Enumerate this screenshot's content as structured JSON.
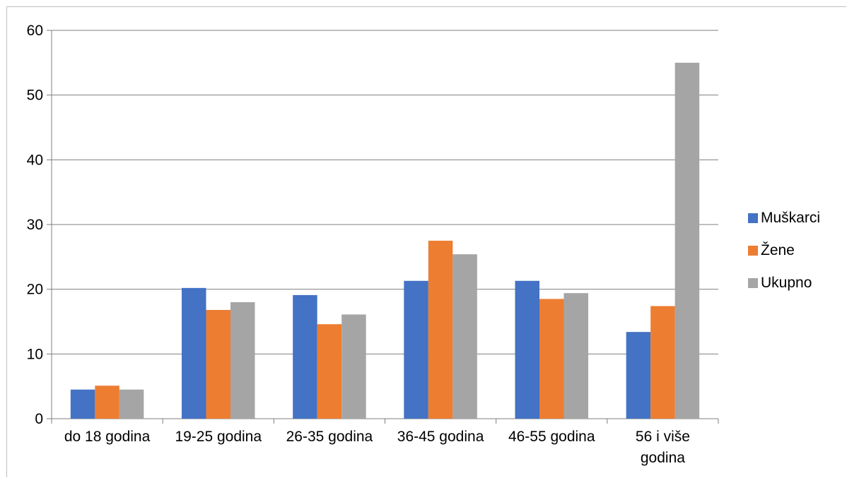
{
  "chart_data": {
    "type": "bar",
    "categories": [
      "do 18 godina",
      "19-25 godina",
      "26-35 godina",
      "36-45 godina",
      "46-55 godina",
      "56 i više godina"
    ],
    "series": [
      {
        "name": "Muškarci",
        "color": "#4472c4",
        "values": [
          4.5,
          20.2,
          19.1,
          21.3,
          21.3,
          13.4
        ]
      },
      {
        "name": "Žene",
        "color": "#ed7d31",
        "values": [
          5.1,
          16.8,
          14.6,
          27.5,
          18.5,
          17.4
        ]
      },
      {
        "name": "Ukupno",
        "color": "#a5a5a5",
        "values": [
          4.5,
          18.0,
          16.1,
          25.4,
          19.4,
          55.0
        ]
      }
    ],
    "ylim": [
      0,
      60
    ],
    "yticks": [
      "0",
      "10",
      "20",
      "30",
      "40",
      "50",
      "60"
    ],
    "grid": true,
    "legend_position": "right"
  }
}
